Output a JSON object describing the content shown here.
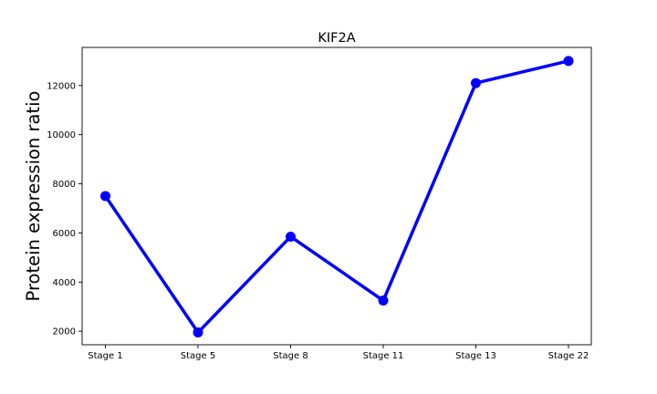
{
  "chart_data": {
    "type": "line",
    "title": "KIF2A",
    "xlabel": "",
    "ylabel": "Protein expression ratio",
    "categories": [
      "Stage 1",
      "Stage 5",
      "Stage 8",
      "Stage 11",
      "Stage 13",
      "Stage 22"
    ],
    "series": [
      {
        "values": [
          7500,
          1950,
          5850,
          3250,
          12100,
          13000
        ],
        "color": "#0000ff",
        "marker": "circle"
      }
    ],
    "yticks": [
      2000,
      4000,
      6000,
      8000,
      10000,
      12000
    ],
    "ytick_labels": [
      "2000",
      "4000",
      "6000",
      "8000",
      "10000",
      "12000"
    ],
    "ylim": [
      1450,
      13550
    ],
    "grid": false,
    "legend": "none"
  }
}
